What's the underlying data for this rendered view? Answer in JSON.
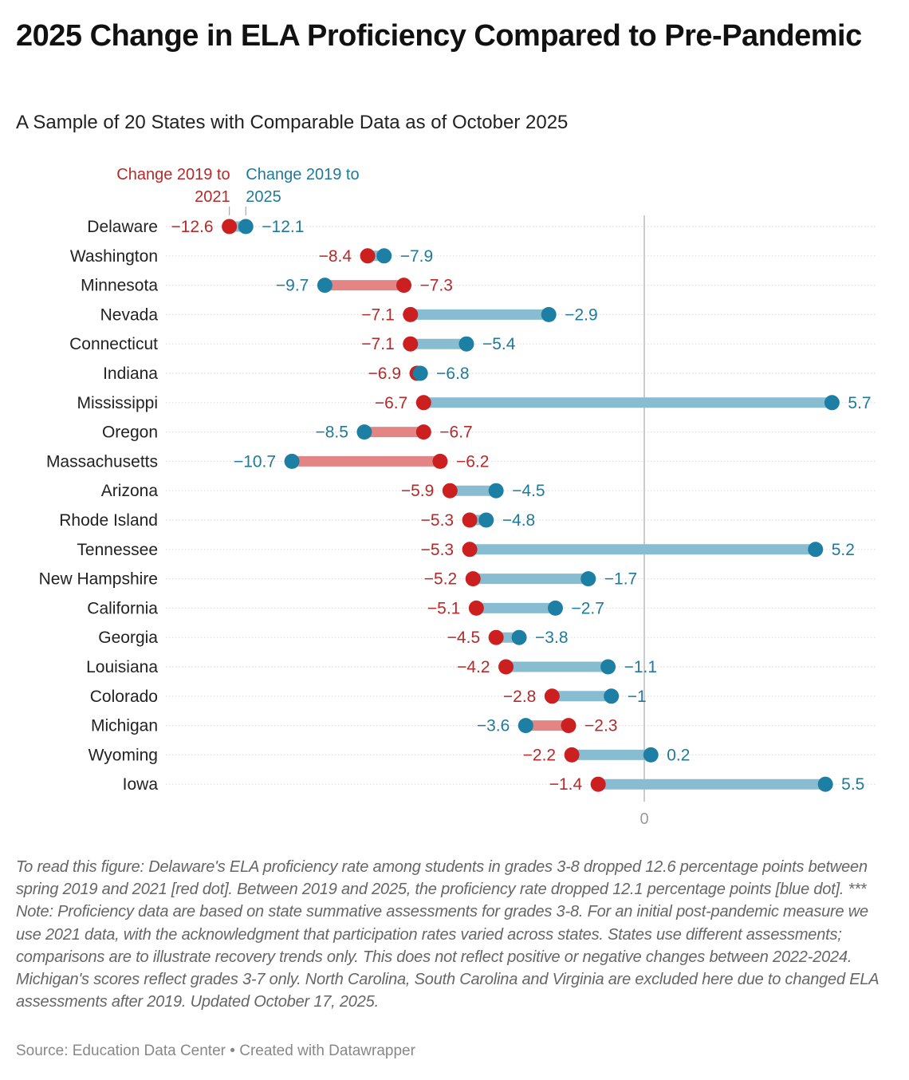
{
  "header": {
    "title": "2025 Change in ELA Proficiency Compared to Pre-Pandemic",
    "subtitle": "A Sample of 20 States with Comparable Data as of October 2025"
  },
  "footer": {
    "notes": "To read this figure: Delaware's ELA proficiency rate among students in grades 3-8 dropped 12.6 percentage points between spring 2019 and 2021 [red dot]. Between 2019 and 2025, the proficiency rate dropped 12.1 percentage points [blue dot]. *** Note: Proficiency data are based on state summative assessments for grades 3-8. For an initial post-pandemic measure we use 2021 data, with the acknowledgment that participation rates varied across states. States use different assessments; comparisons are to illustrate recovery trends only. This does not reflect positive or negative changes between 2022-2024. Michigan's scores reflect grades 3-7 only. North Carolina, South Carolina and Virginia are excluded here due to changed ELA assessments after 2019. Updated October 17, 2025.",
    "source": "Source: Education Data Center",
    "separator": "•",
    "credit": "Created with Datawrapper"
  },
  "chart_data": {
    "type": "dot-range",
    "title": "2025 Change in ELA Proficiency Compared to Pre-Pandemic",
    "subtitle": "A Sample of 20 States with Comparable Data as of October 2025",
    "xlabel": "",
    "ylabel": "",
    "xlim": [
      -13.5,
      7.0
    ],
    "x_ticks": [
      0
    ],
    "x_tick_labels": [
      "0"
    ],
    "grid": "dotted horizontal row guides; vertical zero line",
    "legend_placement": "top-left, annotating first row",
    "colors": {
      "change_2021": "#cc1f1f",
      "change_2025": "#1d7fa3",
      "bar_decline": "#e48585",
      "bar_improve": "#88bcd1",
      "label_2021": "#b52a2a",
      "label_2025": "#1f7a9a",
      "zero_line": "#bbbbbb",
      "grid": "#dddddd"
    },
    "series": [
      {
        "name": "Change 2019 to 2021",
        "key": "change_2021"
      },
      {
        "name": "Change 2019 to 2025",
        "key": "change_2025"
      }
    ],
    "categories": [
      "Delaware",
      "Washington",
      "Minnesota",
      "Nevada",
      "Connecticut",
      "Indiana",
      "Mississippi",
      "Oregon",
      "Massachusetts",
      "Arizona",
      "Rhode Island",
      "Tennessee",
      "New Hampshire",
      "California",
      "Georgia",
      "Louisiana",
      "Colorado",
      "Michigan",
      "Wyoming",
      "Iowa"
    ],
    "rows": [
      {
        "state": "Delaware",
        "change_2021": -12.6,
        "change_2025": -12.1,
        "label_2021": "−12.6",
        "label_2025": "−12.1"
      },
      {
        "state": "Washington",
        "change_2021": -8.4,
        "change_2025": -7.9,
        "label_2021": "−8.4",
        "label_2025": "−7.9"
      },
      {
        "state": "Minnesota",
        "change_2021": -7.3,
        "change_2025": -9.7,
        "label_2021": "−7.3",
        "label_2025": "−9.7"
      },
      {
        "state": "Nevada",
        "change_2021": -7.1,
        "change_2025": -2.9,
        "label_2021": "−7.1",
        "label_2025": "−2.9"
      },
      {
        "state": "Connecticut",
        "change_2021": -7.1,
        "change_2025": -5.4,
        "label_2021": "−7.1",
        "label_2025": "−5.4"
      },
      {
        "state": "Indiana",
        "change_2021": -6.9,
        "change_2025": -6.8,
        "label_2021": "−6.9",
        "label_2025": "−6.8"
      },
      {
        "state": "Mississippi",
        "change_2021": -6.7,
        "change_2025": 5.7,
        "label_2021": "−6.7",
        "label_2025": "5.7"
      },
      {
        "state": "Oregon",
        "change_2021": -6.7,
        "change_2025": -8.5,
        "label_2021": "−6.7",
        "label_2025": "−8.5"
      },
      {
        "state": "Massachusetts",
        "change_2021": -6.2,
        "change_2025": -10.7,
        "label_2021": "−6.2",
        "label_2025": "−10.7"
      },
      {
        "state": "Arizona",
        "change_2021": -5.9,
        "change_2025": -4.5,
        "label_2021": "−5.9",
        "label_2025": "−4.5"
      },
      {
        "state": "Rhode Island",
        "change_2021": -5.3,
        "change_2025": -4.8,
        "label_2021": "−5.3",
        "label_2025": "−4.8"
      },
      {
        "state": "Tennessee",
        "change_2021": -5.3,
        "change_2025": 5.2,
        "label_2021": "−5.3",
        "label_2025": "5.2"
      },
      {
        "state": "New Hampshire",
        "change_2021": -5.2,
        "change_2025": -1.7,
        "label_2021": "−5.2",
        "label_2025": "−1.7"
      },
      {
        "state": "California",
        "change_2021": -5.1,
        "change_2025": -2.7,
        "label_2021": "−5.1",
        "label_2025": "−2.7"
      },
      {
        "state": "Georgia",
        "change_2021": -4.5,
        "change_2025": -3.8,
        "label_2021": "−4.5",
        "label_2025": "−3.8"
      },
      {
        "state": "Louisiana",
        "change_2021": -4.2,
        "change_2025": -1.1,
        "label_2021": "−4.2",
        "label_2025": "−1.1"
      },
      {
        "state": "Colorado",
        "change_2021": -2.8,
        "change_2025": -1.0,
        "label_2021": "−2.8",
        "label_2025": "−1"
      },
      {
        "state": "Michigan",
        "change_2021": -2.3,
        "change_2025": -3.6,
        "label_2021": "−2.3",
        "label_2025": "−3.6"
      },
      {
        "state": "Wyoming",
        "change_2021": -2.2,
        "change_2025": 0.2,
        "label_2021": "−2.2",
        "label_2025": "0.2"
      },
      {
        "state": "Iowa",
        "change_2021": -1.4,
        "change_2025": 5.5,
        "label_2021": "−1.4",
        "label_2025": "5.5"
      }
    ],
    "legend_labels": {
      "change_2021": [
        "Change 2019 to",
        "2021"
      ],
      "change_2025": [
        "Change 2019 to",
        "2025"
      ]
    }
  }
}
